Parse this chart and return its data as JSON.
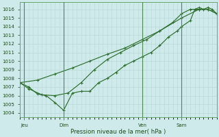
{
  "xlabel": "Pression niveau de la mer( hPa )",
  "bg_color": "#ceeaea",
  "plot_bg_color": "#ceeaea",
  "grid_color_major": "#b8d8d8",
  "grid_color_minor": "#daeaea",
  "line_color": "#2d6e2d",
  "vline_color": "#4a8a4a",
  "ylim": [
    1003.5,
    1016.8
  ],
  "yticks": [
    1004,
    1005,
    1006,
    1007,
    1008,
    1009,
    1010,
    1011,
    1012,
    1013,
    1014,
    1015,
    1016
  ],
  "xlim": [
    0,
    180
  ],
  "day_labels": [
    "Jeu",
    "Dim",
    "Ven",
    "Sam"
  ],
  "day_positions": [
    4,
    40,
    112,
    148
  ],
  "series1_x": [
    0,
    8,
    16,
    24,
    32,
    40,
    48,
    56,
    64,
    72,
    80,
    88,
    96,
    104,
    112,
    120,
    128,
    136,
    144,
    148,
    156,
    160,
    164,
    168,
    172,
    176,
    180
  ],
  "series1_y": [
    1007.5,
    1007.0,
    1006.2,
    1006.0,
    1005.2,
    1004.3,
    1006.3,
    1006.5,
    1006.5,
    1007.5,
    1008.0,
    1008.7,
    1009.5,
    1010.0,
    1010.5,
    1011.0,
    1011.8,
    1012.8,
    1013.5,
    1014.0,
    1014.7,
    1016.0,
    1016.2,
    1016.0,
    1016.2,
    1016.0,
    1015.5
  ],
  "series2_x": [
    0,
    8,
    20,
    32,
    44,
    56,
    68,
    80,
    92,
    104,
    116,
    128,
    140,
    148,
    156,
    164,
    172,
    180
  ],
  "series2_y": [
    1007.5,
    1006.8,
    1006.1,
    1006.0,
    1006.3,
    1007.5,
    1009.0,
    1010.2,
    1011.0,
    1011.8,
    1012.5,
    1013.5,
    1014.5,
    1015.5,
    1016.0,
    1016.0,
    1016.0,
    1015.5
  ],
  "series3_x": [
    0,
    16,
    32,
    48,
    64,
    80,
    96,
    112,
    128,
    148,
    164,
    172,
    180
  ],
  "series3_y": [
    1007.5,
    1007.8,
    1008.5,
    1009.2,
    1010.0,
    1010.8,
    1011.5,
    1012.5,
    1013.5,
    1015.0,
    1016.0,
    1016.0,
    1015.5
  ],
  "marker": "+",
  "markersize": 3.5,
  "linewidth": 0.85,
  "tick_fontsize": 5.0,
  "xlabel_fontsize": 6.2
}
